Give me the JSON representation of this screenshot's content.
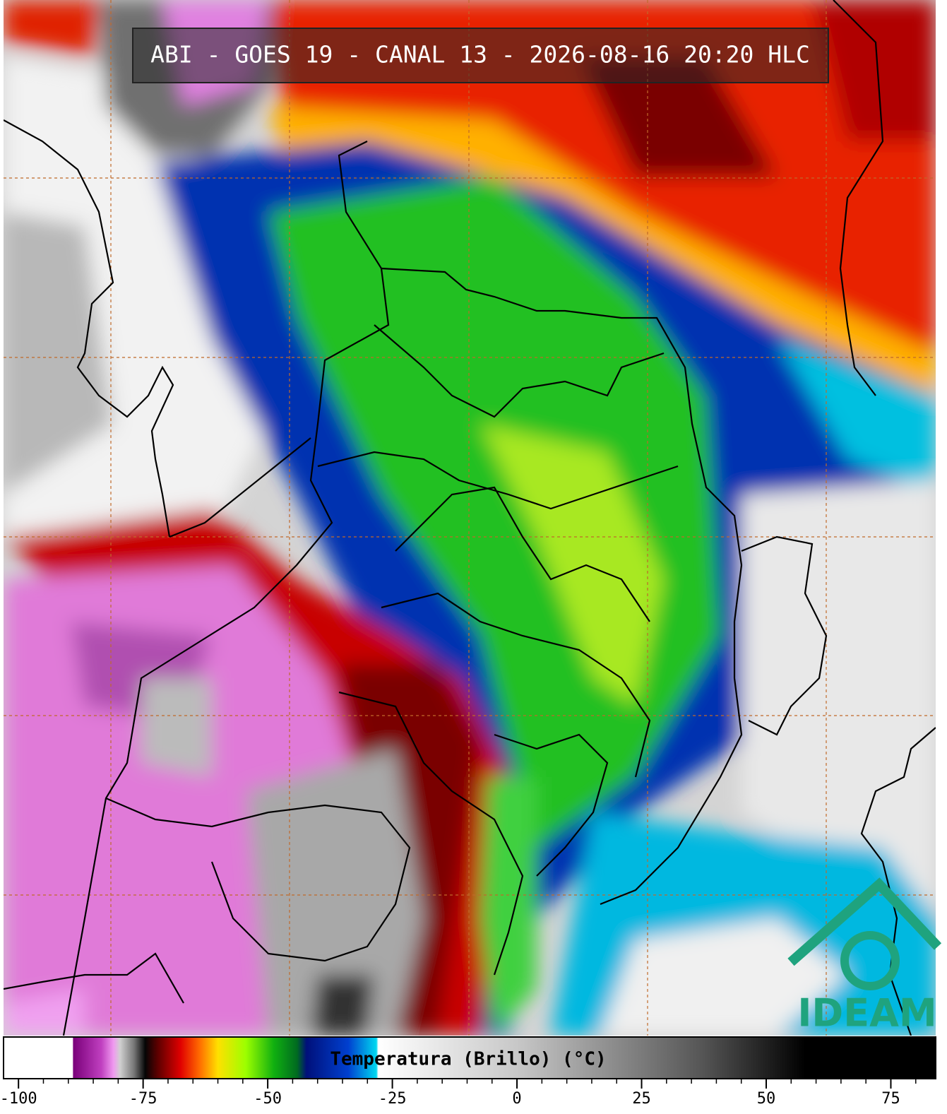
{
  "header": {
    "title": "ABI - GOES 19 - CANAL 13 - 2026-08-16 20:20 HLC"
  },
  "logo": {
    "text": "IDEAM"
  },
  "colorbar": {
    "label": "Temperatura (Brillo) (°C)",
    "range": [
      -103,
      84
    ],
    "ticks": [
      -100,
      -75,
      -50,
      -25,
      0,
      25,
      50,
      75
    ],
    "minor_tick_step": 5
  }
}
